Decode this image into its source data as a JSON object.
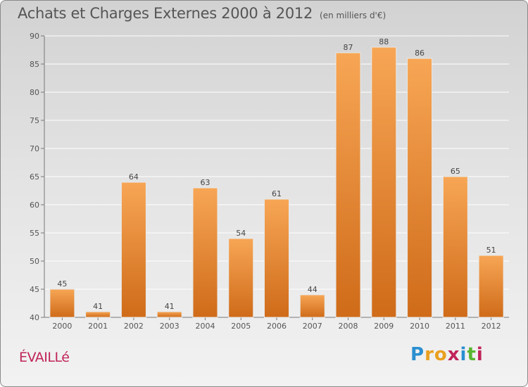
{
  "header": {
    "title": "Achats et Charges Externes 2000 à 2012",
    "unit": "(en milliers d'€)"
  },
  "commune": "ÉVAILLé",
  "logo": {
    "letters": [
      "P",
      "r",
      "o",
      "x",
      "i",
      "t",
      "i"
    ],
    "colors": [
      "#2a8fd0",
      "#e9a020",
      "#e9a020",
      "#c0245a",
      "#2a8fd0",
      "#58b530",
      "#c0245a"
    ]
  },
  "colors": {
    "bar_top": "#f7a655",
    "bar_bottom": "#cf6b19",
    "grid": "#ffffff",
    "commune": "#c0245a"
  },
  "chart_data": {
    "type": "bar",
    "title": "Achats et Charges Externes 2000 à 2012",
    "subtitle": "(en milliers d'€)",
    "categories": [
      "2000",
      "2001",
      "2002",
      "2003",
      "2004",
      "2005",
      "2006",
      "2007",
      "2008",
      "2009",
      "2010",
      "2011",
      "2012"
    ],
    "values": [
      45,
      41,
      64,
      41,
      63,
      54,
      61,
      44,
      87,
      88,
      86,
      65,
      51
    ],
    "ylim": [
      40,
      90
    ],
    "yticks": [
      40,
      45,
      50,
      55,
      60,
      65,
      70,
      75,
      80,
      85,
      90
    ],
    "grid": true,
    "xlabel": "",
    "ylabel": ""
  }
}
